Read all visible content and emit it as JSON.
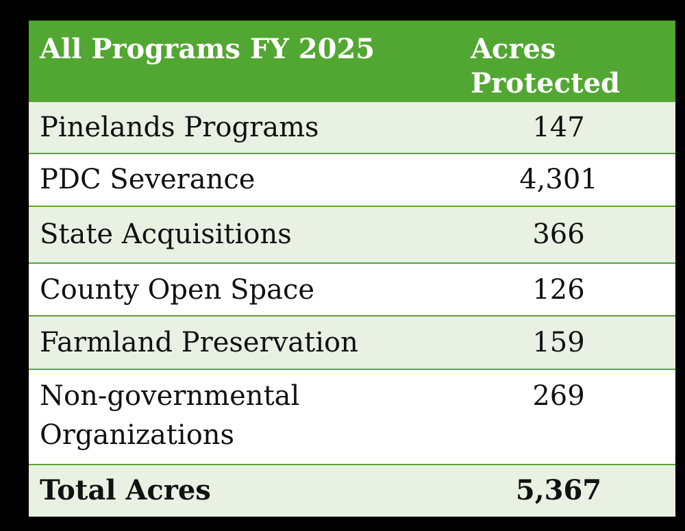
{
  "table": {
    "header": {
      "program": "All Programs FY 2025",
      "acres_line1": "Acres",
      "acres_line2": "Protected"
    },
    "rows": [
      {
        "program": "Pinelands Programs",
        "acres": "147"
      },
      {
        "program": "PDC Severance",
        "acres": "4,301"
      },
      {
        "program": "State Acquisitions",
        "acres": "366"
      },
      {
        "program": "County Open Space",
        "acres": "126"
      },
      {
        "program": "Farmland Preservation",
        "acres": "159"
      },
      {
        "program_line1": "Non-governmental",
        "program_line2": "Organizations",
        "acres": "269"
      }
    ],
    "total": {
      "label": "Total Acres",
      "acres": "5,367"
    }
  },
  "colors": {
    "header_green": "#52a732",
    "border_green": "#5aa534",
    "shaded_row": "#e8f1e2",
    "background": "#000000"
  }
}
